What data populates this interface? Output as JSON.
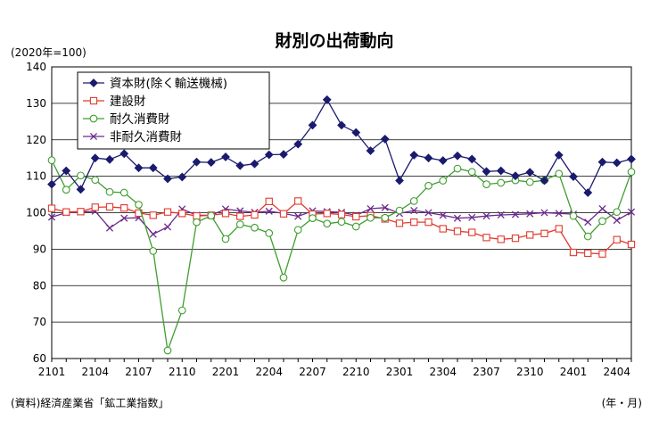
{
  "chart_data": {
    "type": "line",
    "title": "財別の出荷動向",
    "unit_label": "(2020年=100)",
    "source": "(資料)経済産業省「鉱工業指数」",
    "x_unit_label": "(年・月)",
    "ylim": [
      60,
      140
    ],
    "yticks": [
      60,
      70,
      80,
      90,
      100,
      110,
      120,
      130,
      140
    ],
    "grid": true,
    "legend_position": "top-left",
    "x": [
      "2101",
      "2102",
      "2103",
      "2104",
      "2105",
      "2106",
      "2107",
      "2108",
      "2109",
      "2110",
      "2111",
      "2112",
      "2201",
      "2202",
      "2203",
      "2204",
      "2205",
      "2206",
      "2207",
      "2208",
      "2209",
      "2210",
      "2211",
      "2212",
      "2301",
      "2302",
      "2303",
      "2304",
      "2305",
      "2306",
      "2307",
      "2308",
      "2309",
      "2310",
      "2311",
      "2312",
      "2401",
      "2402",
      "2403",
      "2404",
      "2405"
    ],
    "xtick_labels": [
      "2101",
      "2104",
      "2107",
      "2110",
      "2201",
      "2204",
      "2207",
      "2210",
      "2301",
      "2304",
      "2307",
      "2310",
      "2401",
      "2404"
    ],
    "series": [
      {
        "name": "資本財(除く輸送機械)",
        "color": "#1a1a6e",
        "marker": "diamond",
        "values": [
          107.8,
          111.5,
          106.4,
          115.0,
          114.6,
          116.2,
          112.3,
          112.3,
          109.3,
          109.8,
          113.9,
          113.8,
          115.3,
          112.9,
          113.4,
          115.9,
          116.0,
          118.8,
          124.0,
          131.0,
          124.0,
          122.0,
          117.0,
          120.2,
          108.8,
          115.8,
          115.0,
          114.3,
          115.6,
          114.7,
          111.3,
          111.5,
          110.1,
          111.1,
          108.8,
          115.8,
          109.9,
          105.5,
          113.9,
          113.7,
          114.7
        ]
      },
      {
        "name": "建設財",
        "color": "#e03a2e",
        "marker": "square",
        "values": [
          101.2,
          100.2,
          100.3,
          101.5,
          101.6,
          101.3,
          99.9,
          99.3,
          100.2,
          99.8,
          99.1,
          99.3,
          99.8,
          99.0,
          99.4,
          103.1,
          99.7,
          103.2,
          99.6,
          99.8,
          99.5,
          98.9,
          99.2,
          98.3,
          97.1,
          97.4,
          97.4,
          95.6,
          94.9,
          94.6,
          93.2,
          92.7,
          93.0,
          93.9,
          94.3,
          95.6,
          89.1,
          88.9,
          88.7,
          92.6,
          91.3
        ]
      },
      {
        "name": "耐久消費財",
        "color": "#3f9e2e",
        "marker": "circle",
        "values": [
          114.4,
          106.3,
          110.2,
          109.0,
          105.7,
          105.5,
          102.2,
          89.5,
          62.2,
          73.2,
          97.4,
          99.2,
          92.8,
          96.8,
          95.9,
          94.4,
          82.2,
          95.3,
          98.5,
          97.0,
          97.5,
          96.2,
          98.6,
          98.6,
          100.6,
          103.2,
          107.4,
          108.8,
          112.1,
          111.2,
          107.8,
          108.2,
          108.9,
          108.4,
          108.9,
          110.7,
          99.1,
          93.5,
          97.7,
          100.2,
          111.2
        ]
      },
      {
        "name": "非耐久消費財",
        "color": "#6b2a8c",
        "marker": "x",
        "values": [
          98.8,
          100.0,
          100.2,
          100.4,
          95.8,
          98.5,
          98.6,
          94.1,
          96.1,
          101.0,
          99.3,
          99.3,
          101.0,
          100.5,
          100.1,
          100.4,
          99.8,
          99.0,
          100.5,
          100.3,
          100.1,
          99.3,
          101.1,
          101.4,
          99.8,
          100.6,
          100.0,
          99.3,
          98.5,
          98.7,
          99.1,
          99.4,
          99.5,
          99.7,
          100.0,
          99.8,
          99.6,
          97.4,
          101.1,
          97.9,
          100.2
        ]
      }
    ]
  }
}
